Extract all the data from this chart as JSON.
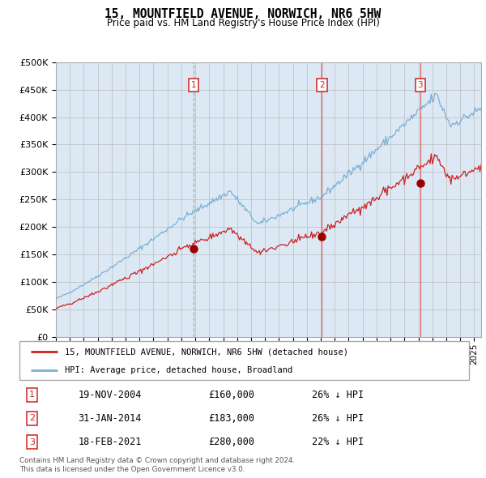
{
  "title": "15, MOUNTFIELD AVENUE, NORWICH, NR6 5HW",
  "subtitle": "Price paid vs. HM Land Registry's House Price Index (HPI)",
  "legend_line1": "15, MOUNTFIELD AVENUE, NORWICH, NR6 5HW (detached house)",
  "legend_line2": "HPI: Average price, detached house, Broadland",
  "footer1": "Contains HM Land Registry data © Crown copyright and database right 2024.",
  "footer2": "This data is licensed under the Open Government Licence v3.0.",
  "transactions": [
    {
      "num": 1,
      "date": "19-NOV-2004",
      "date_decimal": 2004.89,
      "price": 160000,
      "hpi_pct": "26% ↓ HPI"
    },
    {
      "num": 2,
      "date": "31-JAN-2014",
      "date_decimal": 2014.08,
      "price": 183000,
      "hpi_pct": "26% ↓ HPI"
    },
    {
      "num": 3,
      "date": "18-FEB-2021",
      "date_decimal": 2021.13,
      "price": 280000,
      "hpi_pct": "22% ↓ HPI"
    }
  ],
  "hpi_color": "#7ab0d4",
  "price_color": "#cc2222",
  "background_color": "#dce9f5",
  "grid_color": "#bbbbbb",
  "marker_color": "#990000",
  "box_color": "#cc2222",
  "ylim": [
    0,
    500000
  ],
  "xlim_start": 1995.0,
  "xlim_end": 2025.5
}
